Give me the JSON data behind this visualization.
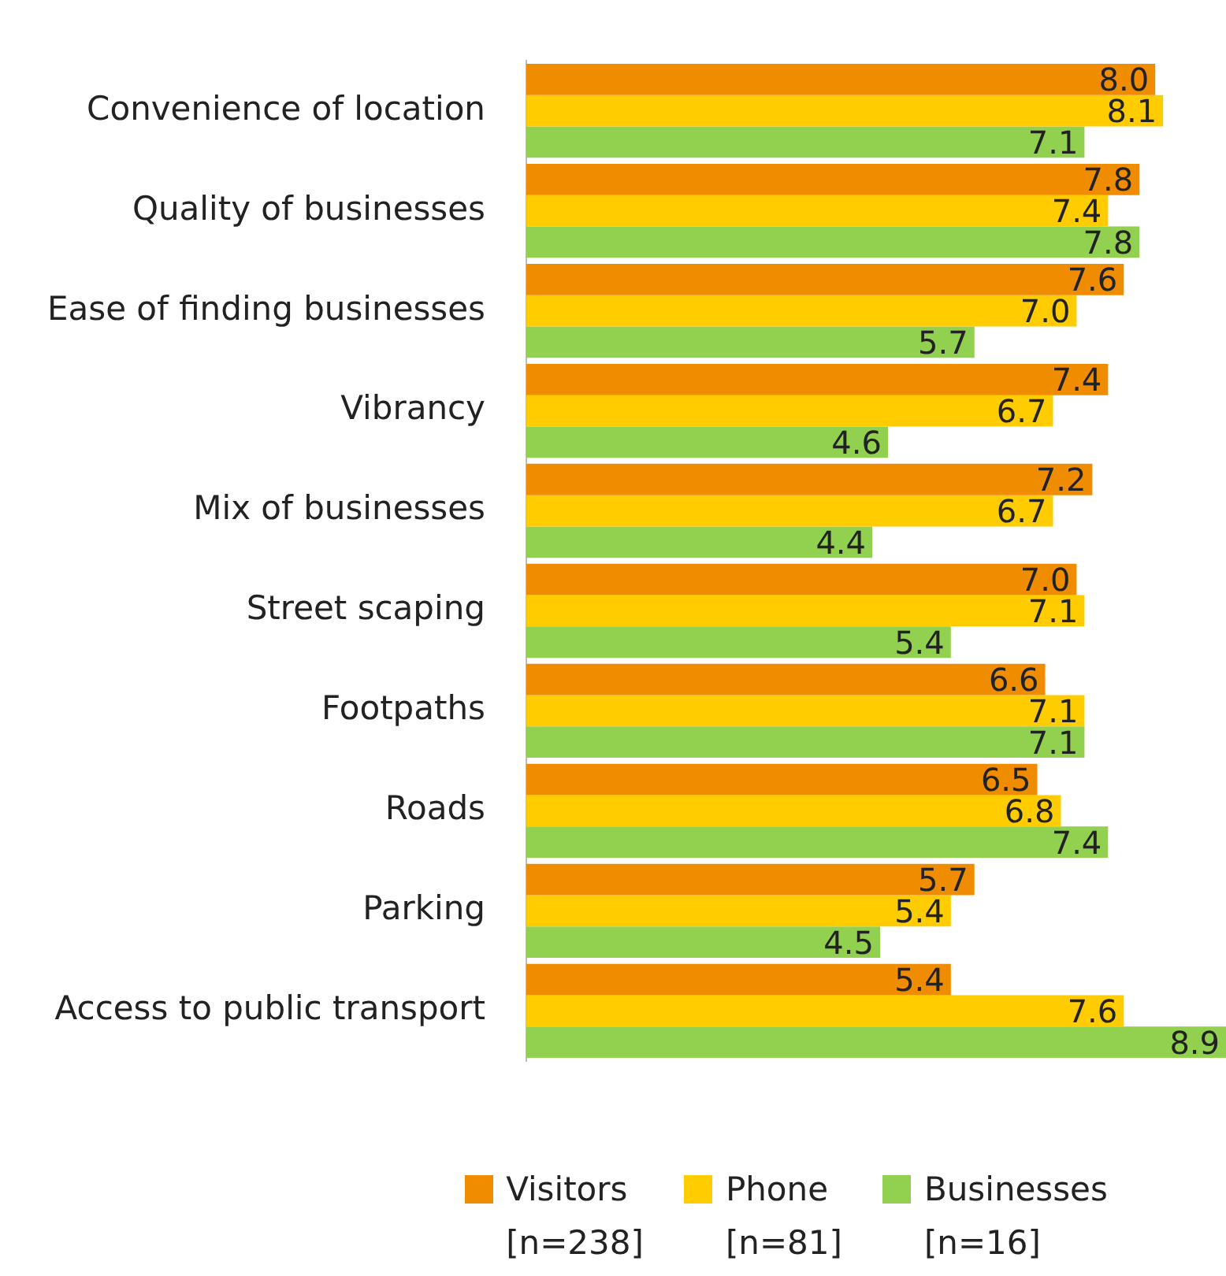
{
  "chart_data": {
    "type": "bar",
    "orientation": "horizontal",
    "categories": [
      "Convenience of location",
      "Quality of businesses",
      "Ease of finding businesses",
      "Vibrancy",
      "Mix of businesses",
      "Street scaping",
      "Footpaths",
      "Roads",
      "Parking",
      "Access to public transport"
    ],
    "series": [
      {
        "name": "Visitors\n[n=238]",
        "color": "#f08c00",
        "values": [
          8.0,
          7.8,
          7.6,
          7.4,
          7.2,
          7.0,
          6.6,
          6.5,
          5.7,
          5.4
        ],
        "value_labels": [
          "8.0",
          "7.8",
          "7.6",
          "7.4",
          "7.2",
          "7.0",
          "6.6",
          "6.5",
          "5.7",
          "5.4"
        ]
      },
      {
        "name": "Phone\n[n=81]",
        "color": "#ffcc00",
        "values": [
          8.1,
          7.4,
          7.0,
          6.7,
          6.7,
          7.1,
          7.1,
          6.8,
          5.4,
          7.6
        ],
        "value_labels": [
          "8.1",
          "7.4",
          "7.0",
          "6.7",
          "6.7",
          "7.1",
          "7.1",
          "6.8",
          "5.4",
          "7.6"
        ]
      },
      {
        "name": "Businesses\n[n=16]",
        "color": "#92d050",
        "values": [
          7.1,
          7.8,
          5.7,
          4.6,
          4.4,
          5.4,
          7.1,
          7.4,
          4.5,
          8.9
        ],
        "value_labels": [
          "7.1",
          "7.8",
          "5.7",
          "4.6",
          "4.4",
          "5.4",
          "7.1",
          "7.4",
          "4.5",
          "8.9"
        ]
      }
    ],
    "xlim": [
      0,
      8.9
    ],
    "legend": "bottom"
  }
}
